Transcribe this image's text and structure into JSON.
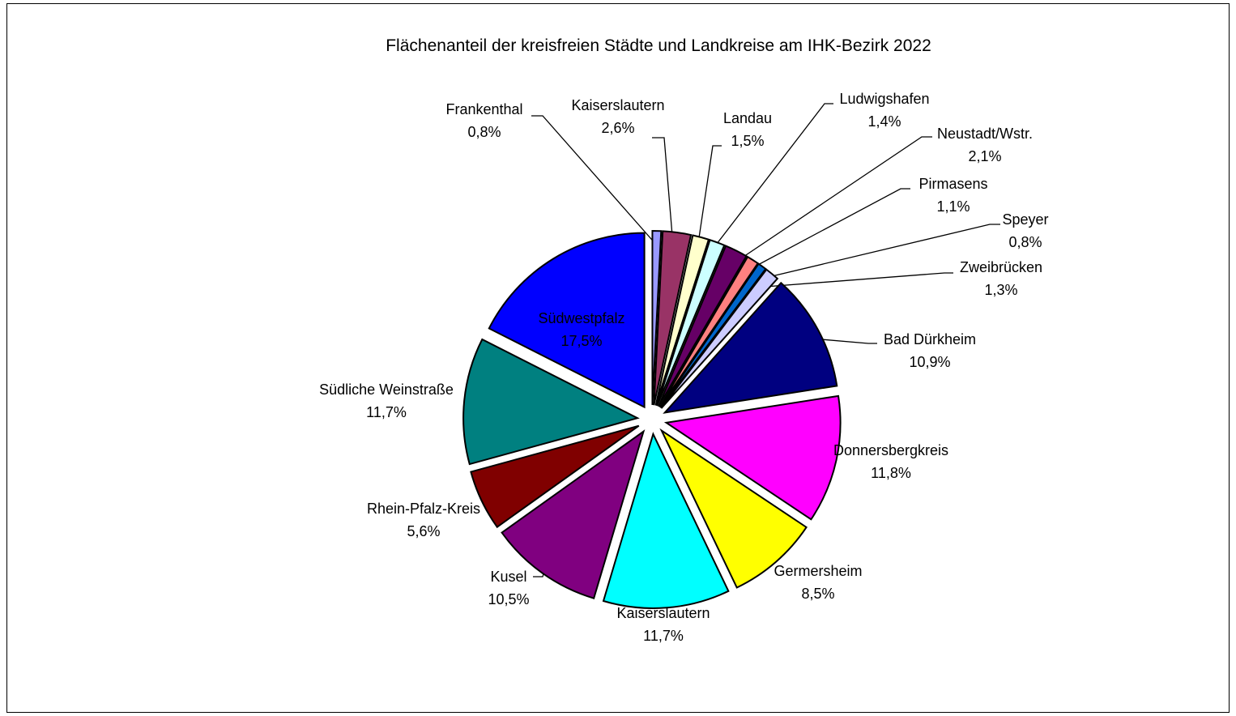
{
  "chart_data": {
    "type": "pie",
    "title": "Flächenanteil der kreisfreien Städte und Landkreise am IHK-Bezirk 2022",
    "slices": [
      {
        "name": "Frankenthal",
        "value_label": "0,8%",
        "value": 0.8,
        "color": "#9999ff"
      },
      {
        "name": "Kaiserslautern",
        "value_label": "2,6%",
        "value": 2.6,
        "color": "#993366"
      },
      {
        "name": "Landau",
        "value_label": "1,5%",
        "value": 1.5,
        "color": "#ffffcc"
      },
      {
        "name": "Ludwigshafen",
        "value_label": "1,4%",
        "value": 1.4,
        "color": "#ccffff"
      },
      {
        "name": "Neustadt/Wstr.",
        "value_label": "2,1%",
        "value": 2.1,
        "color": "#660066"
      },
      {
        "name": "Pirmasens",
        "value_label": "1,1%",
        "value": 1.1,
        "color": "#ff8080"
      },
      {
        "name": "Speyer",
        "value_label": "0,8%",
        "value": 0.8,
        "color": "#0066cc"
      },
      {
        "name": "Zweibrücken",
        "value_label": "1,3%",
        "value": 1.3,
        "color": "#ccccff"
      },
      {
        "name": "Bad Dürkheim",
        "value_label": "10,9%",
        "value": 10.9,
        "color": "#000080"
      },
      {
        "name": "Donnersbergkreis",
        "value_label": "11,8%",
        "value": 11.8,
        "color": "#ff00ff"
      },
      {
        "name": "Germersheim",
        "value_label": "8,5%",
        "value": 8.5,
        "color": "#ffff00"
      },
      {
        "name": "Kaiserslautern",
        "value_label": "11,7%",
        "value": 11.7,
        "color": "#00ffff"
      },
      {
        "name": "Kusel",
        "value_label": "10,5%",
        "value": 10.5,
        "color": "#800080"
      },
      {
        "name": "Rhein-Pfalz-Kreis",
        "value_label": "5,6%",
        "value": 5.6,
        "color": "#800000"
      },
      {
        "name": "Südliche Weinstraße",
        "value_label": "11,7%",
        "value": 11.7,
        "color": "#008080"
      },
      {
        "name": "Südwestpfalz",
        "value_label": "17,5%",
        "value": 17.5,
        "color": "#0000ff"
      }
    ]
  }
}
